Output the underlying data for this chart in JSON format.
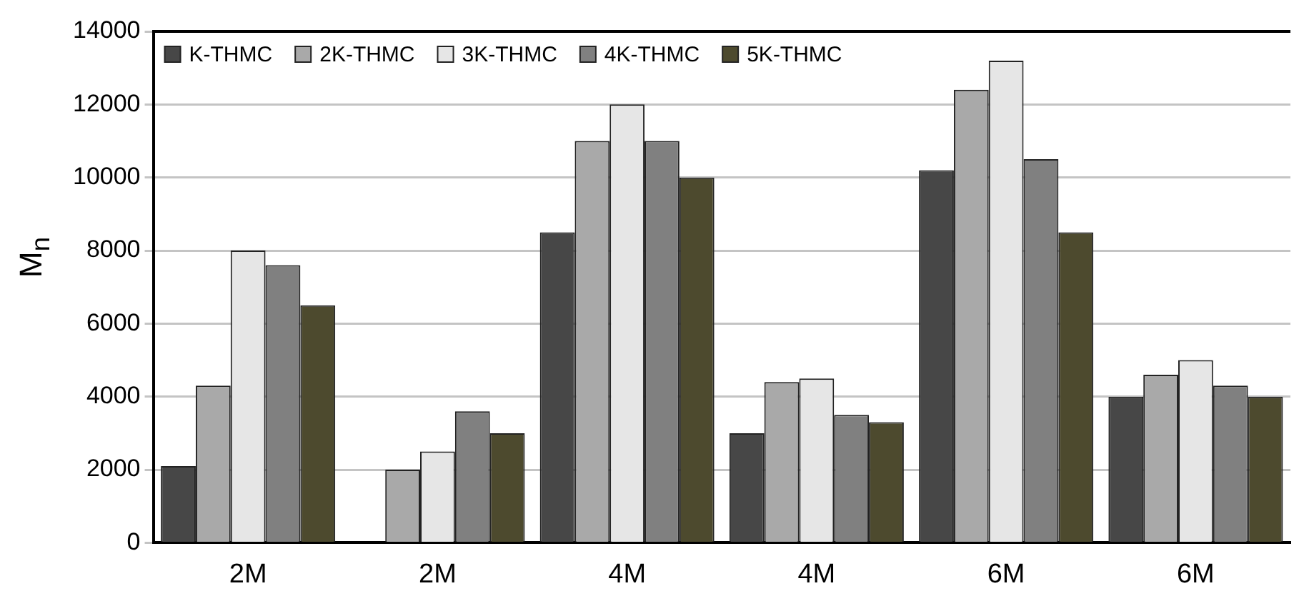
{
  "chart_data": {
    "type": "bar",
    "ylabel": "M$_{n}$",
    "categories": [
      "2M",
      "2M",
      "4M",
      "4M",
      "6M",
      "6M"
    ],
    "series": [
      {
        "name": "K-THMC",
        "color": "#474747",
        "values": [
          2100,
          null,
          8500,
          3000,
          10200,
          4000
        ]
      },
      {
        "name": "2K-THMC",
        "color": "#a9a9a9",
        "values": [
          4300,
          2000,
          11000,
          4400,
          12400,
          4600
        ]
      },
      {
        "name": "3K-THMC",
        "color": "#e6e6e6",
        "values": [
          8000,
          2500,
          12000,
          4500,
          13200,
          5000
        ]
      },
      {
        "name": "4K-THMC",
        "color": "#808080",
        "values": [
          7600,
          3600,
          11000,
          3500,
          10500,
          4300
        ]
      },
      {
        "name": "5K-THMC",
        "color": "#4d4a2e",
        "values": [
          6500,
          3000,
          10000,
          3300,
          8500,
          4000
        ]
      }
    ],
    "ylim": [
      0,
      14000
    ],
    "yticks": [
      0,
      2000,
      4000,
      6000,
      8000,
      10000,
      12000,
      14000
    ],
    "grid": "y",
    "legend": "top left"
  }
}
